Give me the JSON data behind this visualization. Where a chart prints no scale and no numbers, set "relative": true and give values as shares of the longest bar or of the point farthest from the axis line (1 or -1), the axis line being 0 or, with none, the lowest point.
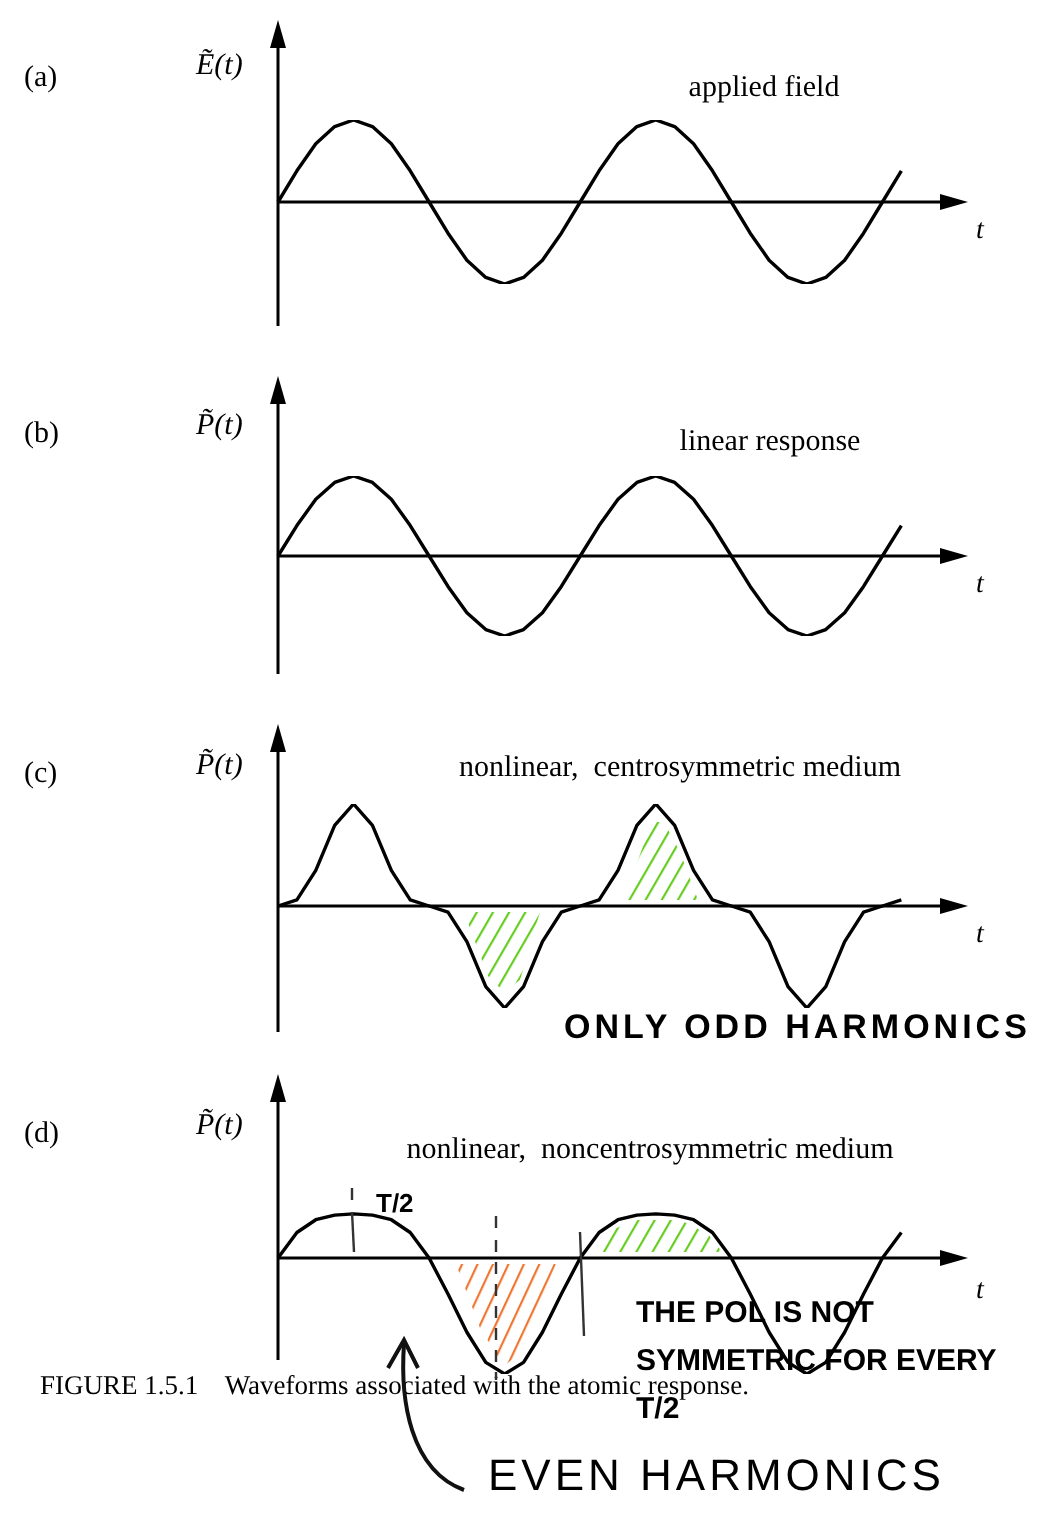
{
  "chart_data": [
    {
      "type": "line",
      "relative": true,
      "title": "applied field",
      "ylabel": "Ẽ(t)",
      "xlabel": "t",
      "annotations": [
        "(a)"
      ],
      "categories": [
        null,
        null,
        null,
        null,
        null,
        null,
        null,
        null,
        null,
        null,
        null,
        null,
        null,
        null,
        null,
        null,
        null,
        null,
        null,
        null,
        null,
        null,
        null,
        null,
        null,
        null,
        null,
        null,
        null,
        null,
        null,
        null,
        null,
        null,
        null,
        null,
        null
      ],
      "series": [
        {
          "color": "#000000",
          "values": [
            0,
            0.38,
            0.71,
            0.92,
            1,
            0.92,
            0.71,
            0.38,
            0,
            -0.38,
            -0.71,
            -0.92,
            -1,
            -0.92,
            -0.71,
            -0.38,
            0,
            0.38,
            0.71,
            0.92,
            1,
            0.92,
            0.71,
            0.38,
            0,
            -0.38,
            -0.71,
            -0.92,
            -1,
            -0.92,
            -0.71,
            -0.38,
            0,
            0.38,
            null,
            null,
            null
          ]
        }
      ]
    },
    {
      "type": "line",
      "relative": true,
      "title": "linear response",
      "ylabel": "P̃(t)",
      "xlabel": "t",
      "annotations": [
        "(b)"
      ],
      "categories": [
        null,
        null,
        null,
        null,
        null,
        null,
        null,
        null,
        null,
        null,
        null,
        null,
        null,
        null,
        null,
        null,
        null,
        null,
        null,
        null,
        null,
        null,
        null,
        null,
        null,
        null,
        null,
        null,
        null,
        null,
        null,
        null,
        null,
        null,
        null,
        null,
        null
      ],
      "series": [
        {
          "color": "#000000",
          "values": [
            0,
            0.38,
            0.71,
            0.92,
            1,
            0.92,
            0.71,
            0.38,
            0,
            -0.38,
            -0.71,
            -0.92,
            -1,
            -0.92,
            -0.71,
            -0.38,
            0,
            0.38,
            0.71,
            0.92,
            1,
            0.92,
            0.71,
            0.38,
            0,
            -0.38,
            -0.71,
            -0.92,
            -1,
            -0.92,
            -0.71,
            -0.38,
            0,
            0.38,
            null,
            null,
            null
          ]
        }
      ]
    },
    {
      "type": "line",
      "relative": true,
      "title": "nonlinear,  centrosymmetric medium",
      "ylabel": "P̃(t)",
      "xlabel": "t",
      "annotations": [
        "(c)",
        "ONLY ODD HARMONICS"
      ],
      "categories": [
        null,
        null,
        null,
        null,
        null,
        null,
        null,
        null,
        null,
        null,
        null,
        null,
        null,
        null,
        null,
        null,
        null,
        null,
        null,
        null,
        null,
        null,
        null,
        null,
        null,
        null,
        null,
        null,
        null,
        null,
        null,
        null,
        null,
        null,
        null,
        null,
        null
      ],
      "series": [
        {
          "color": "#000000",
          "values": [
            0,
            0.06,
            0.35,
            0.79,
            1,
            0.79,
            0.35,
            0.06,
            0,
            -0.06,
            -0.35,
            -0.79,
            -1,
            -0.79,
            -0.35,
            -0.06,
            0,
            0.06,
            0.35,
            0.79,
            1,
            0.79,
            0.35,
            0.06,
            0,
            -0.06,
            -0.35,
            -0.79,
            -1,
            -0.79,
            -0.35,
            -0.06,
            0,
            0.06,
            null,
            null,
            null
          ]
        }
      ]
    },
    {
      "type": "line",
      "relative": true,
      "title": "nonlinear,  noncentrosymmetric medium",
      "ylabel": "P̃(t)",
      "xlabel": "t",
      "annotations": [
        "(d)",
        "T/2",
        "THE POL IS NOT SYMMETRIC FOR EVERY T/2",
        "FIGURE 1.5.1    Waveforms associated with the atomic response.",
        "EVEN HARMONICS"
      ],
      "categories": [
        null,
        null,
        null,
        null,
        null,
        null,
        null,
        null,
        null,
        null,
        null,
        null,
        null,
        null,
        null,
        null,
        null,
        null,
        null,
        null,
        null,
        null,
        null,
        null,
        null,
        null,
        null,
        null,
        null,
        null,
        null,
        null,
        null,
        null,
        null,
        null,
        null
      ],
      "series": [
        {
          "color": "#000000",
          "values": [
            0,
            0.22,
            0.33,
            0.37,
            0.38,
            0.37,
            0.33,
            0.22,
            0,
            -0.31,
            -0.64,
            -0.9,
            -1,
            -0.9,
            -0.64,
            -0.31,
            0,
            0.22,
            0.33,
            0.37,
            0.38,
            0.37,
            0.33,
            0.22,
            0,
            -0.31,
            -0.64,
            -0.9,
            -1,
            -0.9,
            -0.64,
            -0.31,
            0,
            0.22,
            null,
            null,
            null
          ]
        }
      ]
    }
  ]
}
